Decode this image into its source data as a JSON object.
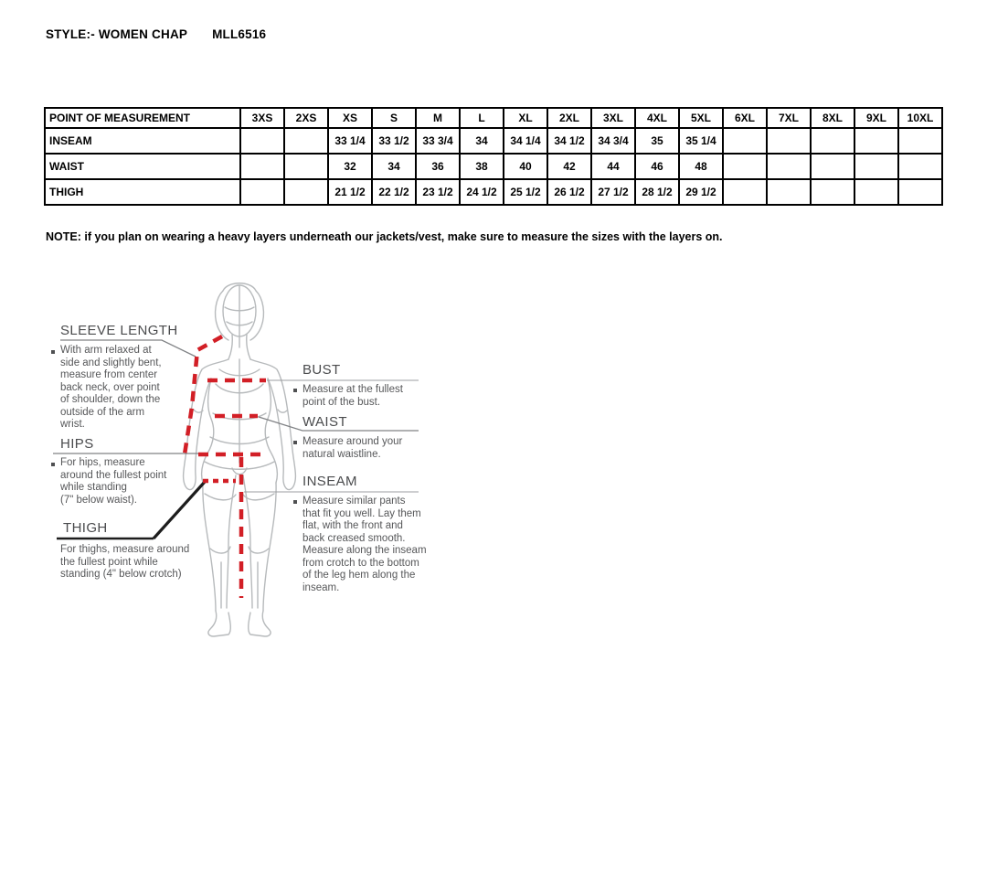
{
  "title": {
    "style_label": "STYLE:- WOMEN CHAP",
    "style_code": "MLL6516"
  },
  "table": {
    "header": "POINT OF MEASUREMENT",
    "sizes": [
      "3XS",
      "2XS",
      "XS",
      "S",
      "M",
      "L",
      "XL",
      "2XL",
      "3XL",
      "4XL",
      "5XL",
      "6XL",
      "7XL",
      "8XL",
      "9XL",
      "10XL"
    ],
    "rows": [
      {
        "label": "INSEAM",
        "values": [
          "",
          "",
          "33 1/4",
          "33 1/2",
          "33 3/4",
          "34",
          "34 1/4",
          "34 1/2",
          "34 3/4",
          "35",
          "35 1/4",
          "",
          "",
          "",
          "",
          ""
        ]
      },
      {
        "label": "WAIST",
        "values": [
          "",
          "",
          "32",
          "34",
          "36",
          "38",
          "40",
          "42",
          "44",
          "46",
          "48",
          "",
          "",
          "",
          "",
          ""
        ]
      },
      {
        "label": "THIGH",
        "values": [
          "",
          "",
          "21 1/2",
          "22 1/2",
          "23 1/2",
          "24 1/2",
          "25 1/2",
          "26 1/2",
          "27 1/2",
          "28 1/2",
          "29 1/2",
          "",
          "",
          "",
          "",
          ""
        ]
      }
    ]
  },
  "note": "NOTE: if you plan on wearing a heavy layers underneath our jackets/vest, make sure to measure the sizes with the layers on.",
  "guide": {
    "sleeve": {
      "heading": "SLEEVE LENGTH",
      "text": "With arm relaxed at\nside and slightly bent,\nmeasure from center\nback neck, over point\nof shoulder, down the\noutside of the arm\nwrist."
    },
    "hips": {
      "heading": "HIPS",
      "text": "For hips, measure\naround the fullest point\nwhile standing\n(7\" below waist)."
    },
    "thigh": {
      "heading": "THIGH",
      "text": "For thighs, measure around\nthe fullest point while\nstanding (4\" below crotch)"
    },
    "bust": {
      "heading": "BUST",
      "text": "Measure at the fullest\npoint of the bust."
    },
    "waist": {
      "heading": "WAIST",
      "text": "Measure around your\nnatural waistline."
    },
    "inseam": {
      "heading": "INSEAM",
      "text": "Measure similar pants\nthat fit you well. Lay them\nflat, with the front and\nback creased smooth.\nMeasure along the inseam\nfrom crotch to the bottom\nof the leg hem along the\ninseam."
    }
  },
  "colors": {
    "measure_line": "#d21f26",
    "figure_line": "#b7babc",
    "heading_gray": "#4a4b4d",
    "text_gray": "#565759",
    "leader_gray": "#808285"
  }
}
